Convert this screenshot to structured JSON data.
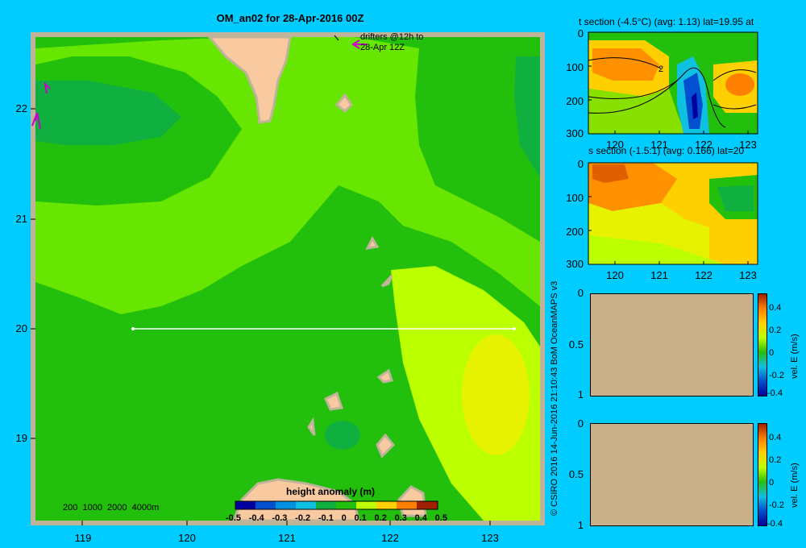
{
  "colors": {
    "background": "#00ccff",
    "land": "#f9c9a0",
    "land_border": "#bfb39a",
    "frame": "#bfb39a",
    "drifter": "#cc00cc",
    "transect": "#ffffff",
    "empty_panel": "#c8b08a"
  },
  "map": {
    "title": "OM_an02 for 28-Apr-2016 00Z",
    "drifters_label_line1": "drifters @12h to",
    "drifters_label_line2": "28-Apr 12Z",
    "x_ticks": [
      "119",
      "120",
      "121",
      "122",
      "123"
    ],
    "y_ticks": [
      "22",
      "21",
      "20",
      "19"
    ],
    "bathymetry_label": "200  1000  2000  4000m",
    "colorbar_title": "height anomaly (m)",
    "colorbar_ticks": [
      "-0.5",
      "-0.4",
      "-0.3",
      "-0.2",
      "-0.1",
      "0",
      "0.1",
      "0.2",
      "0.3",
      "0.4",
      "0.5"
    ]
  },
  "copyright": "© CSIRO 2016   14-Jun-2016 21:10:43 BoM OceanMAPS v3",
  "t_section": {
    "title": "t section (-4.5°C) (avg: 1.13) lat=19.95 at",
    "y_ticks": [
      "0",
      "100",
      "200",
      "300"
    ],
    "x_ticks": [
      "120",
      "121",
      "122",
      "123"
    ],
    "contour_label": "2"
  },
  "s_section": {
    "title": "s section (-1.5:1) (avg: 0.166) lat=20",
    "y_ticks": [
      "0",
      "100",
      "200",
      "300"
    ],
    "x_ticks": [
      "120",
      "121",
      "122",
      "123"
    ]
  },
  "vel_panel_1": {
    "y_ticks": [
      "0",
      "0.5",
      "1"
    ],
    "cbar_ticks": [
      "0.4",
      "0.2",
      "0",
      "-0.2",
      "-0.4"
    ],
    "cbar_label": "vel. E (m/s)"
  },
  "vel_panel_2": {
    "y_ticks": [
      "0",
      "0.5",
      "1"
    ],
    "cbar_ticks": [
      "0.4",
      "0.2",
      "0",
      "-0.2",
      "-0.4"
    ],
    "cbar_label": "vel. E (m/s)"
  }
}
